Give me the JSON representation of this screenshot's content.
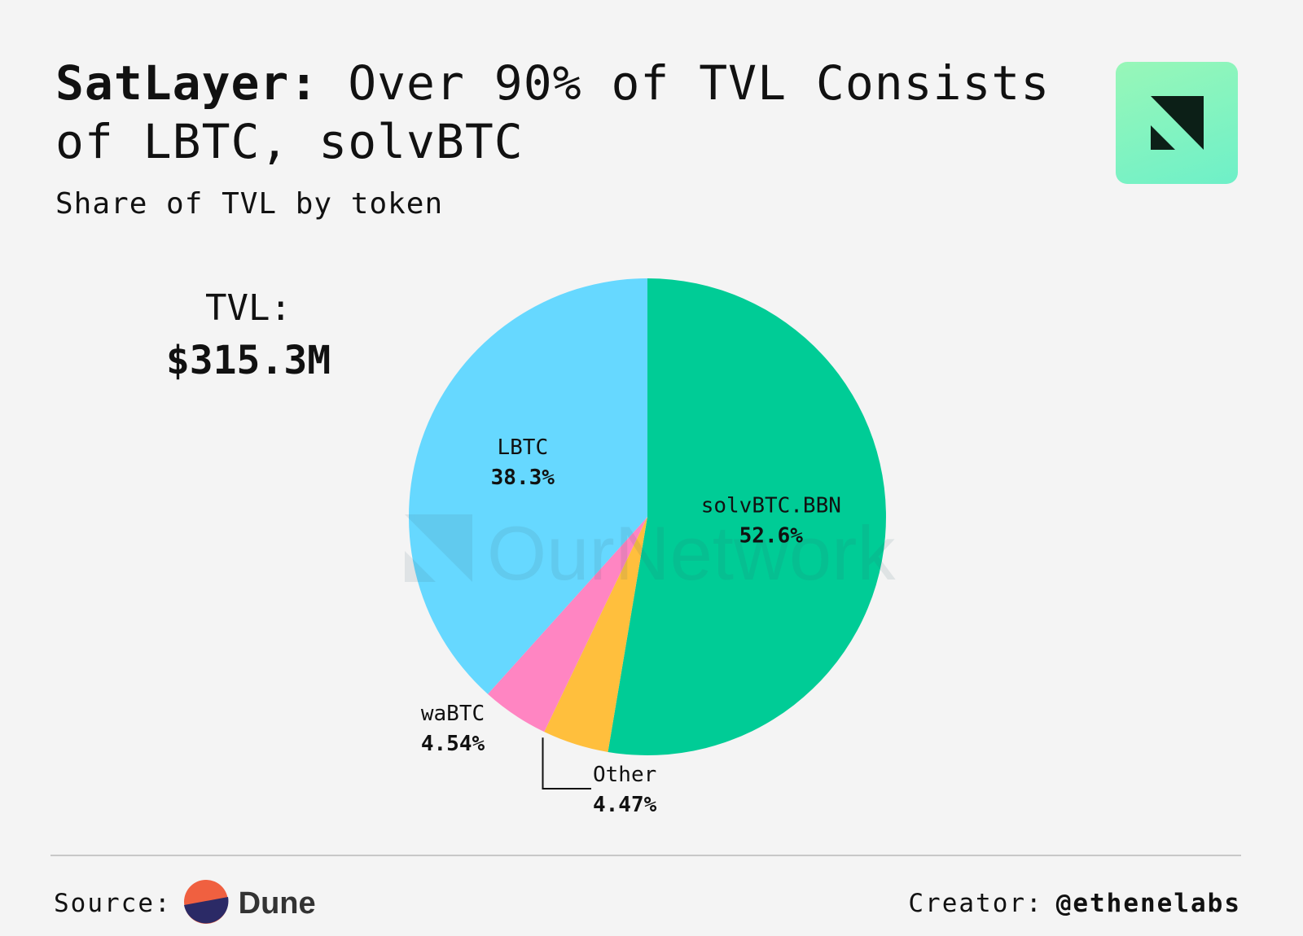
{
  "header": {
    "title_strong": "SatLayer:",
    "title_rest": "Over 90% of TVL Consists of LBTC, solvBTC",
    "subtitle": "Share of TVL by token"
  },
  "logo_icon": "ournetwork-logo-icon",
  "tvl": {
    "label": "TVL:",
    "value": "$315.3M"
  },
  "watermark": "OurNetwork",
  "chart_data": {
    "type": "pie",
    "categories": [
      "solvBTC.BBN",
      "Other",
      "waBTC",
      "LBTC"
    ],
    "values": [
      52.6,
      4.47,
      4.54,
      38.3
    ],
    "labels": [
      "52.6%",
      "4.47%",
      "4.54%",
      "38.3%"
    ],
    "colors": [
      "#00cc96",
      "#ffbf3d",
      "#ff85c2",
      "#66d8ff"
    ],
    "start": "12 o'clock",
    "direction": "clockwise"
  },
  "footer": {
    "source_label": "Source:",
    "source_icon": "dune-logo-icon",
    "source_name": "Dune",
    "creator_label": "Creator:",
    "creator_handle": "@ethenelabs"
  }
}
